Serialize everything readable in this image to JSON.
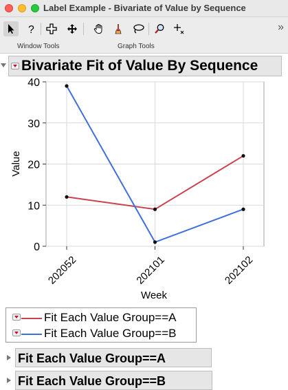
{
  "window": {
    "title": "Label Example - Bivariate of Value by Sequence"
  },
  "toolbar": {
    "tools": [
      {
        "name": "arrow-tool-icon",
        "selected": true
      },
      {
        "name": "help-tool-icon"
      },
      {
        "name": "selection-tool-icon"
      },
      {
        "name": "scroller-tool-icon"
      },
      {
        "name": "grabber-hand-tool-icon"
      },
      {
        "name": "brush-tool-icon"
      },
      {
        "name": "lasso-tool-icon"
      },
      {
        "name": "magnifier-tool-icon"
      },
      {
        "name": "crosshair-tool-icon"
      }
    ],
    "group_labels": {
      "window_tools": "Window Tools",
      "graph_tools": "Graph Tools"
    },
    "overflow": "»"
  },
  "report": {
    "title": "Bivariate Fit of Value By Sequence"
  },
  "chart_data": {
    "type": "line",
    "categories": [
      "202052",
      "202101",
      "202102"
    ],
    "series": [
      {
        "name": "Fit Each Value Group==A",
        "color": "#c9414e",
        "values": [
          12,
          9,
          22
        ]
      },
      {
        "name": "Fit Each Value Group==B",
        "color": "#3e6fdc",
        "values": [
          39,
          1,
          9
        ]
      }
    ],
    "xlabel": "Week",
    "ylabel": "Value",
    "ylim": [
      0,
      40
    ],
    "yticks": [
      0,
      10,
      20,
      30,
      40
    ],
    "grid": true,
    "legend_position": "below"
  },
  "legend": {
    "items": [
      {
        "label": "Fit Each Value Group==A",
        "color": "#c9414e"
      },
      {
        "label": "Fit Each Value Group==B",
        "color": "#3e6fdc"
      }
    ]
  },
  "outlines": [
    {
      "title": "Fit Each Value Group==A"
    },
    {
      "title": "Fit Each Value Group==B"
    }
  ]
}
